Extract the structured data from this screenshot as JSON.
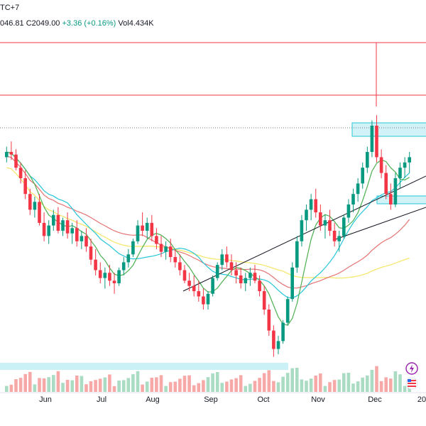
{
  "header": {
    "title_fragment": "TC+7",
    "ohlc_prefix": "046.81",
    "close_label": "C2049.00",
    "change": "+3.36 (+0.16%)",
    "volume": "Vol4.434K"
  },
  "colors": {
    "up": "#089981",
    "down": "#f23645",
    "up_volume": "#a9dcc3",
    "down_volume": "#f7a9a7",
    "ma_fast": "#f23645",
    "ma_green": "#4caf50",
    "ma_cyan": "#26c6da",
    "ma_red": "#e57373",
    "ma_yellow": "#f5e663",
    "zone": "#b2ebf2",
    "level_line": "#f23645",
    "trend_line": "#131722"
  },
  "icons": [
    "flash-icon",
    "flag-us-icon"
  ],
  "chart_data": {
    "type": "candlestick",
    "title": "",
    "x_ticks": [
      "Jun",
      "Jul",
      "Aug",
      "Sep",
      "Oct",
      "Nov",
      "Dec",
      "20"
    ],
    "ylim": [
      0,
      100
    ],
    "candles": [
      {
        "o": 78,
        "h": 82,
        "l": 76,
        "c": 80
      },
      {
        "o": 80,
        "h": 84,
        "l": 77,
        "c": 79
      },
      {
        "o": 79,
        "h": 81,
        "l": 73,
        "c": 74
      },
      {
        "o": 74,
        "h": 76,
        "l": 68,
        "c": 70
      },
      {
        "o": 70,
        "h": 73,
        "l": 62,
        "c": 64
      },
      {
        "o": 64,
        "h": 66,
        "l": 56,
        "c": 58
      },
      {
        "o": 58,
        "h": 63,
        "l": 55,
        "c": 61
      },
      {
        "o": 61,
        "h": 64,
        "l": 52,
        "c": 53
      },
      {
        "o": 53,
        "h": 57,
        "l": 46,
        "c": 48
      },
      {
        "o": 48,
        "h": 54,
        "l": 45,
        "c": 52
      },
      {
        "o": 52,
        "h": 58,
        "l": 50,
        "c": 56
      },
      {
        "o": 56,
        "h": 59,
        "l": 49,
        "c": 50
      },
      {
        "o": 50,
        "h": 55,
        "l": 48,
        "c": 54
      },
      {
        "o": 54,
        "h": 57,
        "l": 47,
        "c": 49
      },
      {
        "o": 49,
        "h": 53,
        "l": 45,
        "c": 51
      },
      {
        "o": 51,
        "h": 54,
        "l": 44,
        "c": 46
      },
      {
        "o": 46,
        "h": 50,
        "l": 43,
        "c": 48
      },
      {
        "o": 48,
        "h": 51,
        "l": 42,
        "c": 44
      },
      {
        "o": 44,
        "h": 47,
        "l": 37,
        "c": 39
      },
      {
        "o": 39,
        "h": 43,
        "l": 33,
        "c": 35
      },
      {
        "o": 35,
        "h": 38,
        "l": 30,
        "c": 32
      },
      {
        "o": 32,
        "h": 36,
        "l": 28,
        "c": 34
      },
      {
        "o": 34,
        "h": 37,
        "l": 29,
        "c": 31
      },
      {
        "o": 31,
        "h": 34,
        "l": 26,
        "c": 30
      },
      {
        "o": 30,
        "h": 36,
        "l": 29,
        "c": 35
      },
      {
        "o": 35,
        "h": 40,
        "l": 33,
        "c": 38
      },
      {
        "o": 38,
        "h": 43,
        "l": 36,
        "c": 41
      },
      {
        "o": 41,
        "h": 47,
        "l": 40,
        "c": 46
      },
      {
        "o": 46,
        "h": 54,
        "l": 45,
        "c": 52
      },
      {
        "o": 52,
        "h": 57,
        "l": 48,
        "c": 50
      },
      {
        "o": 50,
        "h": 55,
        "l": 47,
        "c": 53
      },
      {
        "o": 53,
        "h": 56,
        "l": 46,
        "c": 48
      },
      {
        "o": 48,
        "h": 51,
        "l": 43,
        "c": 45
      },
      {
        "o": 45,
        "h": 48,
        "l": 40,
        "c": 42
      },
      {
        "o": 42,
        "h": 46,
        "l": 39,
        "c": 44
      },
      {
        "o": 44,
        "h": 47,
        "l": 38,
        "c": 40
      },
      {
        "o": 40,
        "h": 43,
        "l": 36,
        "c": 38
      },
      {
        "o": 38,
        "h": 41,
        "l": 33,
        "c": 35
      },
      {
        "o": 35,
        "h": 37,
        "l": 30,
        "c": 31
      },
      {
        "o": 31,
        "h": 34,
        "l": 27,
        "c": 29
      },
      {
        "o": 29,
        "h": 33,
        "l": 25,
        "c": 27
      },
      {
        "o": 27,
        "h": 31,
        "l": 23,
        "c": 25
      },
      {
        "o": 25,
        "h": 28,
        "l": 20,
        "c": 22
      },
      {
        "o": 22,
        "h": 27,
        "l": 20,
        "c": 26
      },
      {
        "o": 26,
        "h": 33,
        "l": 25,
        "c": 32
      },
      {
        "o": 32,
        "h": 38,
        "l": 31,
        "c": 37
      },
      {
        "o": 37,
        "h": 43,
        "l": 35,
        "c": 41
      },
      {
        "o": 41,
        "h": 44,
        "l": 36,
        "c": 38
      },
      {
        "o": 38,
        "h": 41,
        "l": 33,
        "c": 35
      },
      {
        "o": 35,
        "h": 38,
        "l": 30,
        "c": 33
      },
      {
        "o": 33,
        "h": 36,
        "l": 28,
        "c": 30
      },
      {
        "o": 30,
        "h": 34,
        "l": 27,
        "c": 32
      },
      {
        "o": 32,
        "h": 36,
        "l": 29,
        "c": 34
      },
      {
        "o": 34,
        "h": 37,
        "l": 30,
        "c": 31
      },
      {
        "o": 31,
        "h": 33,
        "l": 25,
        "c": 27
      },
      {
        "o": 27,
        "h": 29,
        "l": 18,
        "c": 20
      },
      {
        "o": 20,
        "h": 22,
        "l": 10,
        "c": 12
      },
      {
        "o": 12,
        "h": 14,
        "l": 2,
        "c": 5
      },
      {
        "o": 5,
        "h": 10,
        "l": 3,
        "c": 8
      },
      {
        "o": 8,
        "h": 16,
        "l": 7,
        "c": 15
      },
      {
        "o": 15,
        "h": 25,
        "l": 14,
        "c": 24
      },
      {
        "o": 24,
        "h": 38,
        "l": 23,
        "c": 36
      },
      {
        "o": 36,
        "h": 48,
        "l": 34,
        "c": 46
      },
      {
        "o": 46,
        "h": 56,
        "l": 44,
        "c": 54
      },
      {
        "o": 54,
        "h": 60,
        "l": 50,
        "c": 58
      },
      {
        "o": 58,
        "h": 64,
        "l": 54,
        "c": 62
      },
      {
        "o": 62,
        "h": 66,
        "l": 55,
        "c": 57
      },
      {
        "o": 57,
        "h": 60,
        "l": 50,
        "c": 52
      },
      {
        "o": 52,
        "h": 56,
        "l": 47,
        "c": 54
      },
      {
        "o": 54,
        "h": 58,
        "l": 48,
        "c": 50
      },
      {
        "o": 50,
        "h": 53,
        "l": 44,
        "c": 46
      },
      {
        "o": 46,
        "h": 50,
        "l": 42,
        "c": 48
      },
      {
        "o": 48,
        "h": 56,
        "l": 47,
        "c": 55
      },
      {
        "o": 55,
        "h": 62,
        "l": 53,
        "c": 60
      },
      {
        "o": 60,
        "h": 66,
        "l": 57,
        "c": 64
      },
      {
        "o": 64,
        "h": 70,
        "l": 61,
        "c": 68
      },
      {
        "o": 68,
        "h": 76,
        "l": 66,
        "c": 74
      },
      {
        "o": 74,
        "h": 82,
        "l": 72,
        "c": 80
      },
      {
        "o": 80,
        "h": 92,
        "l": 78,
        "c": 90
      },
      {
        "o": 90,
        "h": 94,
        "l": 76,
        "c": 78
      },
      {
        "o": 78,
        "h": 81,
        "l": 70,
        "c": 72
      },
      {
        "o": 72,
        "h": 75,
        "l": 62,
        "c": 64
      },
      {
        "o": 64,
        "h": 68,
        "l": 58,
        "c": 60
      },
      {
        "o": 60,
        "h": 72,
        "l": 59,
        "c": 70
      },
      {
        "o": 70,
        "h": 76,
        "l": 66,
        "c": 74
      },
      {
        "o": 74,
        "h": 78,
        "l": 70,
        "c": 76
      },
      {
        "o": 76,
        "h": 80,
        "l": 72,
        "c": 78
      }
    ]
  }
}
